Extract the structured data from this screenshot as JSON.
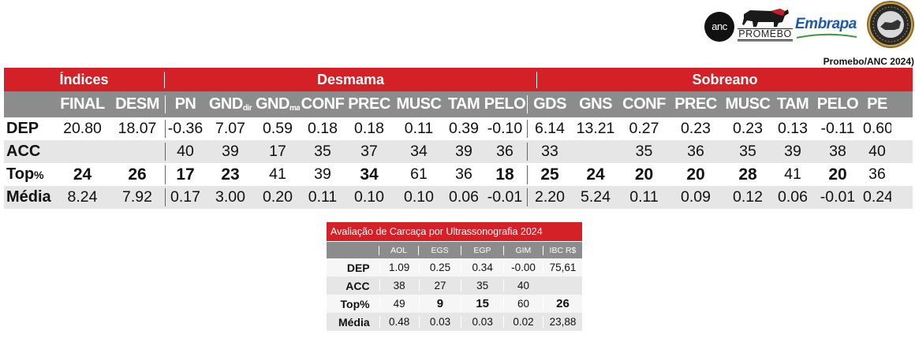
{
  "logos": {
    "anc": "anc",
    "promebo": "PROMEBO",
    "embrapa": "Embrapa",
    "seal_text": "ASSOCIAÇÃO NACIONAL DE CRIADORES · HERD-BOOK COLLARES · BRASIL · 1906"
  },
  "source": "Promebo/ANC 2024)",
  "sections": {
    "indices": "Índices",
    "desmama": "Desmama",
    "sobreano": "Sobreano"
  },
  "columns": [
    {
      "main": "FINAL",
      "sub": ""
    },
    {
      "main": "DESM",
      "sub": ""
    },
    {
      "main": "PN",
      "sub": ""
    },
    {
      "main": "GND",
      "sub": "dir"
    },
    {
      "main": "GND",
      "sub": "mat"
    },
    {
      "main": "CONF",
      "sub": ""
    },
    {
      "main": "PREC",
      "sub": ""
    },
    {
      "main": "MUSC",
      "sub": ""
    },
    {
      "main": "TAM",
      "sub": ""
    },
    {
      "main": "PELO",
      "sub": ""
    },
    {
      "main": "GDS",
      "sub": ""
    },
    {
      "main": "GNS",
      "sub": ""
    },
    {
      "main": "CONF",
      "sub": ""
    },
    {
      "main": "PREC",
      "sub": ""
    },
    {
      "main": "MUSC",
      "sub": ""
    },
    {
      "main": "TAM",
      "sub": ""
    },
    {
      "main": "PELO",
      "sub": ""
    },
    {
      "main": "PE",
      "sub": ""
    }
  ],
  "rows": [
    {
      "label": "DEP",
      "label_suffix": "",
      "values": [
        "20.80",
        "18.07",
        "-0.36",
        "7.07",
        "0.59",
        "0.18",
        "0.18",
        "0.11",
        "0.39",
        "-0.10",
        "6.14",
        "13.21",
        "0.27",
        "0.23",
        "0.23",
        "0.13",
        "-0.11",
        "0.60"
      ],
      "bold": []
    },
    {
      "label": "ACC",
      "label_suffix": "",
      "values": [
        "",
        "",
        "40",
        "39",
        "17",
        "35",
        "37",
        "34",
        "39",
        "36",
        "33",
        "",
        "35",
        "36",
        "35",
        "39",
        "38",
        "40"
      ],
      "bold": []
    },
    {
      "label": "Top",
      "label_suffix": "%",
      "values": [
        "24",
        "26",
        "17",
        "23",
        "41",
        "39",
        "34",
        "61",
        "36",
        "18",
        "25",
        "24",
        "20",
        "20",
        "28",
        "41",
        "20",
        "36"
      ],
      "bold": [
        0,
        1,
        2,
        3,
        6,
        9,
        10,
        11,
        12,
        13,
        14,
        16
      ]
    },
    {
      "label": "Média",
      "label_suffix": "",
      "values": [
        "8.24",
        "7.92",
        "0.17",
        "3.00",
        "0.20",
        "0.11",
        "0.10",
        "0.10",
        "0.06",
        "-0.01",
        "2.20",
        "5.24",
        "0.11",
        "0.09",
        "0.12",
        "0.06",
        "-0.01",
        "0.24"
      ],
      "bold": []
    }
  ],
  "carcass": {
    "title": "Avaliação de Carcaça por Ultrassonografia 2024",
    "columns": [
      "AOL",
      "EGS",
      "EGP",
      "GIM",
      "IBC R$"
    ],
    "rows": [
      {
        "label": "DEP",
        "values": [
          "1.09",
          "0.25",
          "0.34",
          "-0.00",
          "75,61"
        ],
        "bold": []
      },
      {
        "label": "ACC",
        "values": [
          "38",
          "27",
          "35",
          "40",
          ""
        ],
        "bold": []
      },
      {
        "label": "Top%",
        "values": [
          "49",
          "9",
          "15",
          "60",
          "26"
        ],
        "bold": [
          1,
          2,
          4
        ]
      },
      {
        "label": "Média",
        "values": [
          "0.48",
          "0.03",
          "0.03",
          "0.02",
          "23,88"
        ],
        "bold": []
      }
    ]
  },
  "colors": {
    "accent": "#d42027",
    "header_gray": "#8c8c8c",
    "row_shade": "#e6e6e6"
  }
}
